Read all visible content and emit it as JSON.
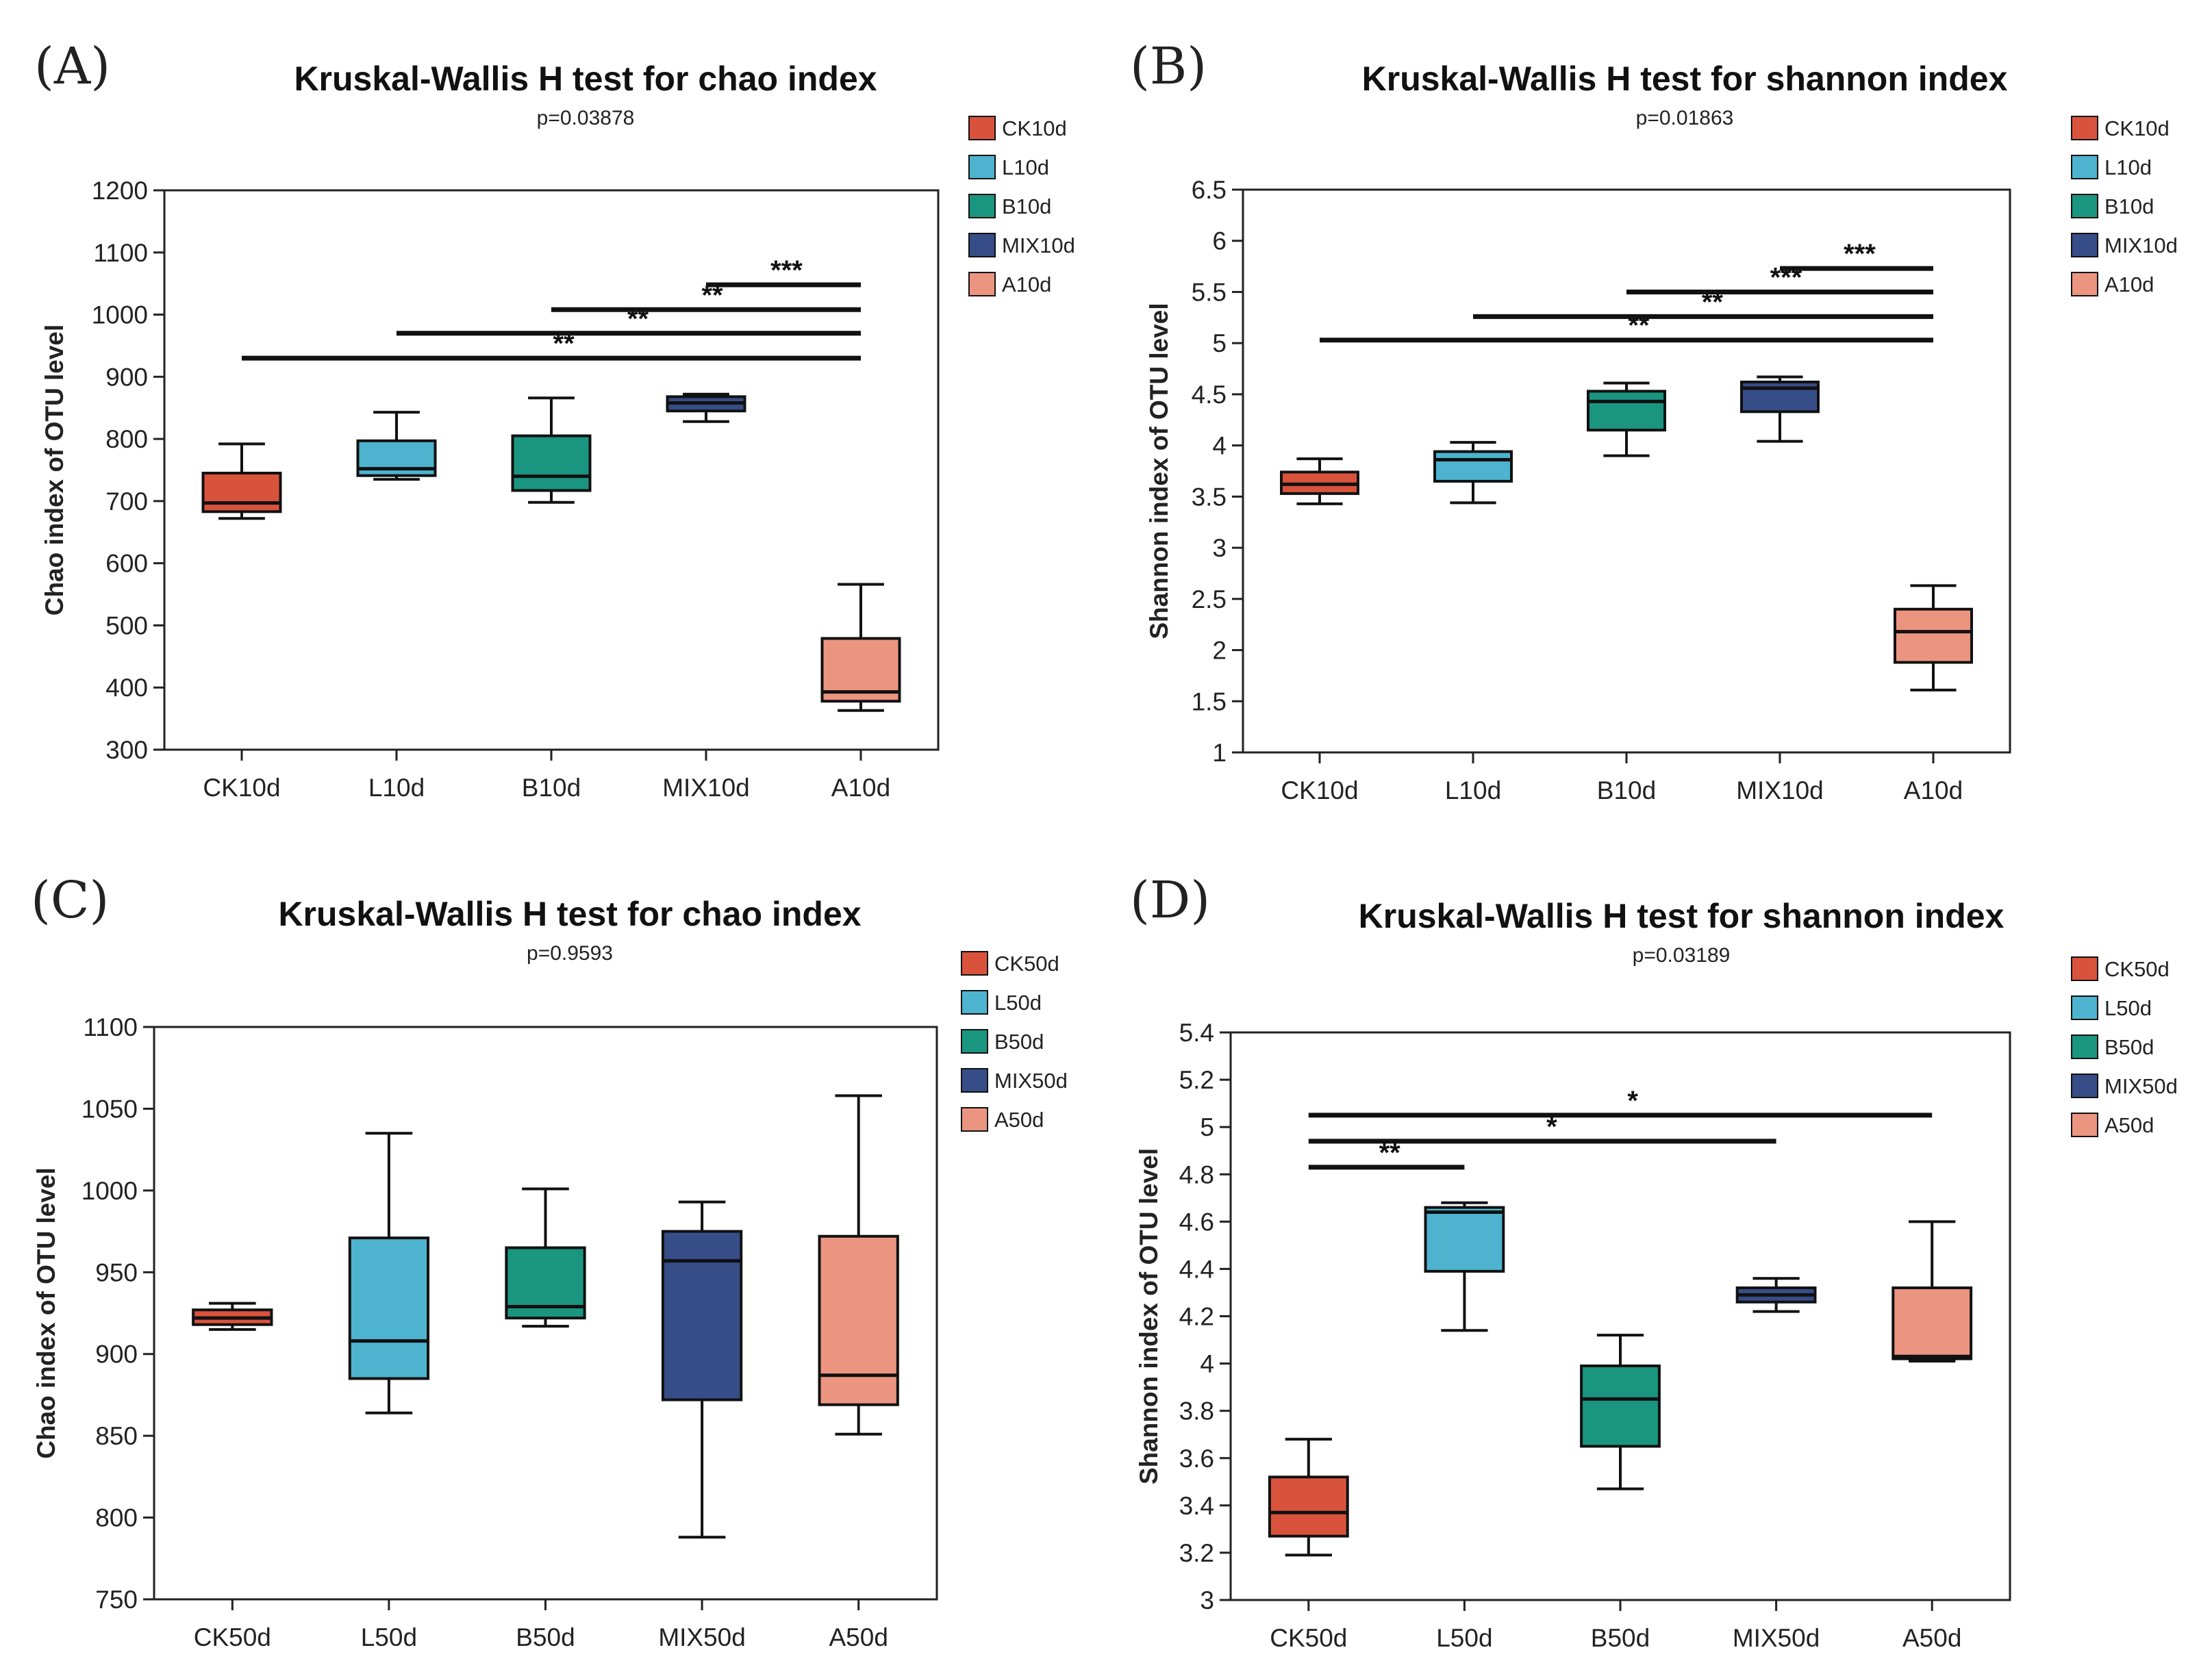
{
  "colors": [
    "#d9533c",
    "#4db3cf",
    "#1a9580",
    "#364d87",
    "#eb9580"
  ],
  "chart_data": [
    {
      "panel_label": "(A)",
      "type": "box",
      "title": "Kruskal-Wallis H test for chao index",
      "subtitle": "p=0.03878",
      "xlabel": "",
      "ylabel": "Chao index of OTU level",
      "ylim": [
        300,
        1200
      ],
      "yticks": [
        "300",
        "400",
        "500",
        "600",
        "700",
        "800",
        "900",
        "1000",
        "1100",
        "1200"
      ],
      "categories": [
        "CK10d",
        "L10d",
        "B10d",
        "MIX10d",
        "A10d"
      ],
      "legend": [
        "CK10d",
        "L10d",
        "B10d",
        "MIX10d",
        "A10d"
      ],
      "boxes": [
        {
          "min": 672,
          "q1": 683,
          "median": 697,
          "q3": 745,
          "max": 792
        },
        {
          "min": 735,
          "q1": 741,
          "median": 752,
          "q3": 797,
          "max": 843
        },
        {
          "min": 698,
          "q1": 717,
          "median": 740,
          "q3": 805,
          "max": 866
        },
        {
          "min": 828,
          "q1": 845,
          "median": 858,
          "q3": 868,
          "max": 872
        },
        {
          "min": 363,
          "q1": 378,
          "median": 393,
          "q3": 479,
          "max": 566
        }
      ],
      "significance": [
        {
          "from": 0,
          "to": 4,
          "y": 930,
          "label": "**"
        },
        {
          "from": 1,
          "to": 4,
          "y": 970,
          "label": "**"
        },
        {
          "from": 2,
          "to": 4,
          "y": 1008,
          "label": "**"
        },
        {
          "from": 3,
          "to": 4,
          "y": 1048,
          "label": "***"
        }
      ]
    },
    {
      "panel_label": "(B)",
      "type": "box",
      "title": "Kruskal-Wallis H test for shannon index",
      "subtitle": "p=0.01863",
      "xlabel": "",
      "ylabel": "Shannon index of OTU level",
      "ylim": [
        1,
        6.5
      ],
      "yticks": [
        "1",
        "1.5",
        "2",
        "2.5",
        "3",
        "3.5",
        "4",
        "4.5",
        "5",
        "5.5",
        "6",
        "6.5"
      ],
      "categories": [
        "CK10d",
        "L10d",
        "B10d",
        "MIX10d",
        "A10d"
      ],
      "legend": [
        "CK10d",
        "L10d",
        "B10d",
        "MIX10d",
        "A10d"
      ],
      "boxes": [
        {
          "min": 3.43,
          "q1": 3.53,
          "median": 3.62,
          "q3": 3.74,
          "max": 3.87
        },
        {
          "min": 3.44,
          "q1": 3.65,
          "median": 3.86,
          "q3": 3.94,
          "max": 4.03
        },
        {
          "min": 3.9,
          "q1": 4.15,
          "median": 4.43,
          "q3": 4.53,
          "max": 4.61
        },
        {
          "min": 4.04,
          "q1": 4.33,
          "median": 4.56,
          "q3": 4.62,
          "max": 4.67
        },
        {
          "min": 1.61,
          "q1": 1.88,
          "median": 2.18,
          "q3": 2.4,
          "max": 2.63
        }
      ],
      "significance": [
        {
          "from": 0,
          "to": 4,
          "y": 5.03,
          "label": "**"
        },
        {
          "from": 1,
          "to": 4,
          "y": 5.26,
          "label": "**"
        },
        {
          "from": 2,
          "to": 4,
          "y": 5.5,
          "label": "***"
        },
        {
          "from": 3,
          "to": 4,
          "y": 5.73,
          "label": "***"
        }
      ]
    },
    {
      "panel_label": "(C)",
      "type": "box",
      "title": "Kruskal-Wallis H test for chao index",
      "subtitle": "p=0.9593",
      "xlabel": "",
      "ylabel": "Chao index of OTU level",
      "ylim": [
        750,
        1100
      ],
      "yticks": [
        "750",
        "800",
        "850",
        "900",
        "950",
        "1000",
        "1050",
        "1100"
      ],
      "categories": [
        "CK50d",
        "L50d",
        "B50d",
        "MIX50d",
        "A50d"
      ],
      "legend": [
        "CK50d",
        "L50d",
        "B50d",
        "MIX50d",
        "A50d"
      ],
      "boxes": [
        {
          "min": 915,
          "q1": 918,
          "median": 922,
          "q3": 927,
          "max": 931
        },
        {
          "min": 864,
          "q1": 885,
          "median": 908,
          "q3": 971,
          "max": 1035
        },
        {
          "min": 917,
          "q1": 922,
          "median": 929,
          "q3": 965,
          "max": 1001
        },
        {
          "min": 788,
          "q1": 872,
          "median": 957,
          "q3": 975,
          "max": 993
        },
        {
          "min": 851,
          "q1": 869,
          "median": 887,
          "q3": 972,
          "max": 1058
        }
      ],
      "significance": []
    },
    {
      "panel_label": "(D)",
      "type": "box",
      "title": "Kruskal-Wallis H test for shannon index",
      "subtitle": "p=0.03189",
      "xlabel": "",
      "ylabel": "Shannon index of OTU level",
      "ylim": [
        3,
        5.4
      ],
      "yticks": [
        "3",
        "3.2",
        "3.4",
        "3.6",
        "3.8",
        "4",
        "4.2",
        "4.4",
        "4.6",
        "4.8",
        "5",
        "5.2",
        "5.4"
      ],
      "categories": [
        "CK50d",
        "L50d",
        "B50d",
        "MIX50d",
        "A50d"
      ],
      "legend": [
        "CK50d",
        "L50d",
        "B50d",
        "MIX50d",
        "A50d"
      ],
      "boxes": [
        {
          "min": 3.19,
          "q1": 3.27,
          "median": 3.37,
          "q3": 3.52,
          "max": 3.68
        },
        {
          "min": 4.14,
          "q1": 4.39,
          "median": 4.64,
          "q3": 4.66,
          "max": 4.68
        },
        {
          "min": 3.47,
          "q1": 3.65,
          "median": 3.85,
          "q3": 3.99,
          "max": 4.12
        },
        {
          "min": 4.22,
          "q1": 4.26,
          "median": 4.29,
          "q3": 4.32,
          "max": 4.36
        },
        {
          "min": 4.01,
          "q1": 4.02,
          "median": 4.03,
          "q3": 4.32,
          "max": 4.6
        }
      ],
      "significance": [
        {
          "from": 0,
          "to": 1,
          "y": 4.83,
          "label": "**"
        },
        {
          "from": 0,
          "to": 3,
          "y": 4.94,
          "label": "*"
        },
        {
          "from": 0,
          "to": 4,
          "y": 5.05,
          "label": "*"
        }
      ]
    }
  ]
}
